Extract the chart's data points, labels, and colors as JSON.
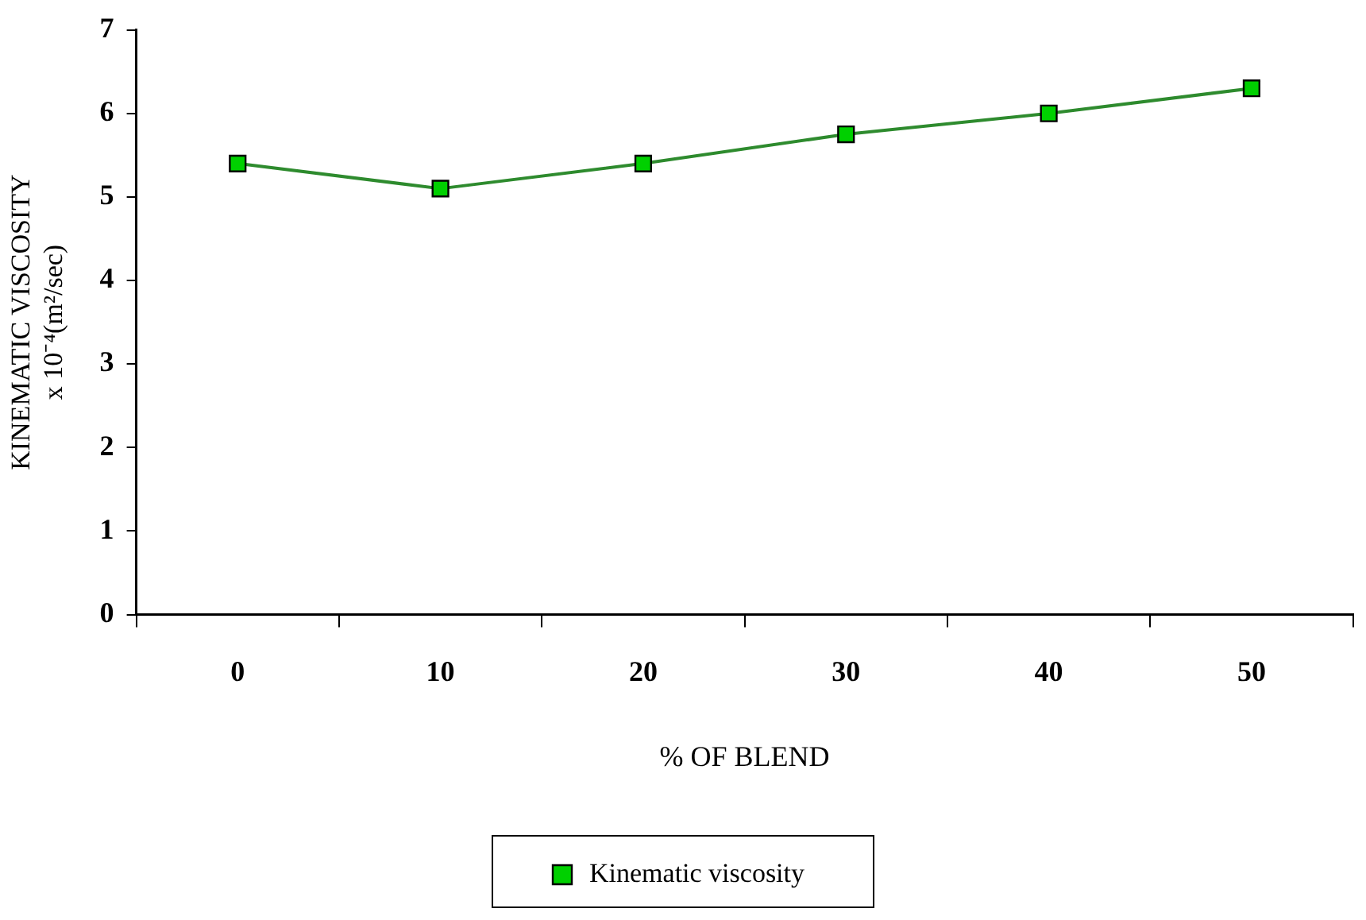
{
  "chart_data": {
    "type": "line",
    "xlabel": "% OF BLEND",
    "ylabel": "KINEMATIC VISCOSITY\nx 10⁻⁴(m²/sec)",
    "categories": [
      "0",
      "10",
      "20",
      "30",
      "40",
      "50"
    ],
    "series": [
      {
        "name": "Kinematic viscosity",
        "color": "#2e8b2e",
        "colors": [
          "#00d000",
          "#00d000",
          "#00d000",
          "#00d000",
          "#00d000",
          "#00d000"
        ],
        "values": [
          5.4,
          5.1,
          5.4,
          5.75,
          6.0,
          6.3
        ]
      }
    ],
    "ylim": [
      0,
      7
    ],
    "yticks": [
      0,
      1,
      2,
      3,
      4,
      5,
      6,
      7
    ],
    "grid": false,
    "legend": "bottom",
    "marker": "square",
    "line_style": "solid"
  }
}
